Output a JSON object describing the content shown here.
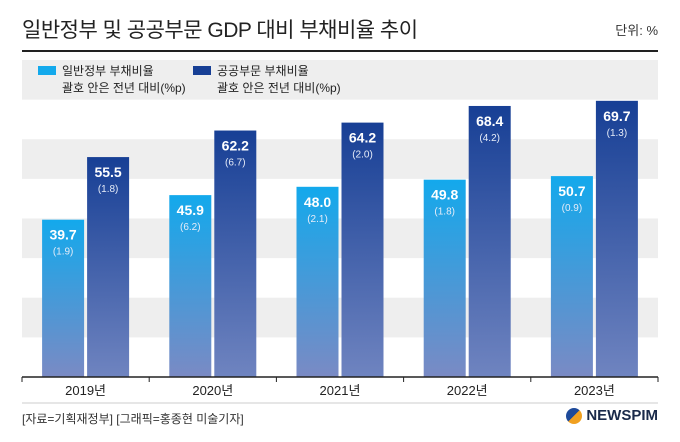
{
  "title": "일반정부 및 공공부문 GDP 대비 부채비율 추이",
  "unit_label": "단위: %",
  "source": "[자료=기획재정부] [그래픽=홍종현 미술기자]",
  "logo_text": "NEWSPIM",
  "colors": {
    "general_gov": "#1aa3e4",
    "public_sector": "#1a4a9c",
    "band": "#eeeeee",
    "axis": "#222222"
  },
  "chart_data": {
    "type": "bar",
    "title": "일반정부 및 공공부문 GDP 대비 부채비율 추이",
    "categories": [
      "2019년",
      "2020년",
      "2021년",
      "2022년",
      "2023년"
    ],
    "ylim": [
      0,
      80
    ],
    "grid": "alternating-bands",
    "legend_position": "top-left",
    "series": [
      {
        "name": "일반정부 부채비율",
        "sublabel": "괄호 안은 전년 대비(%p)",
        "values": [
          39.7,
          45.9,
          48.0,
          49.8,
          50.7
        ],
        "changes": [
          "(1.9)",
          "(6.2)",
          "(2.1)",
          "(1.8)",
          "(0.9)"
        ]
      },
      {
        "name": "공공부문 부채비율",
        "sublabel": "괄호 안은 전년 대비(%p)",
        "values": [
          55.5,
          62.2,
          64.2,
          68.4,
          69.7
        ],
        "changes": [
          "(1.8)",
          "(6.7)",
          "(2.0)",
          "(4.2)",
          "(1.3)"
        ]
      }
    ]
  }
}
